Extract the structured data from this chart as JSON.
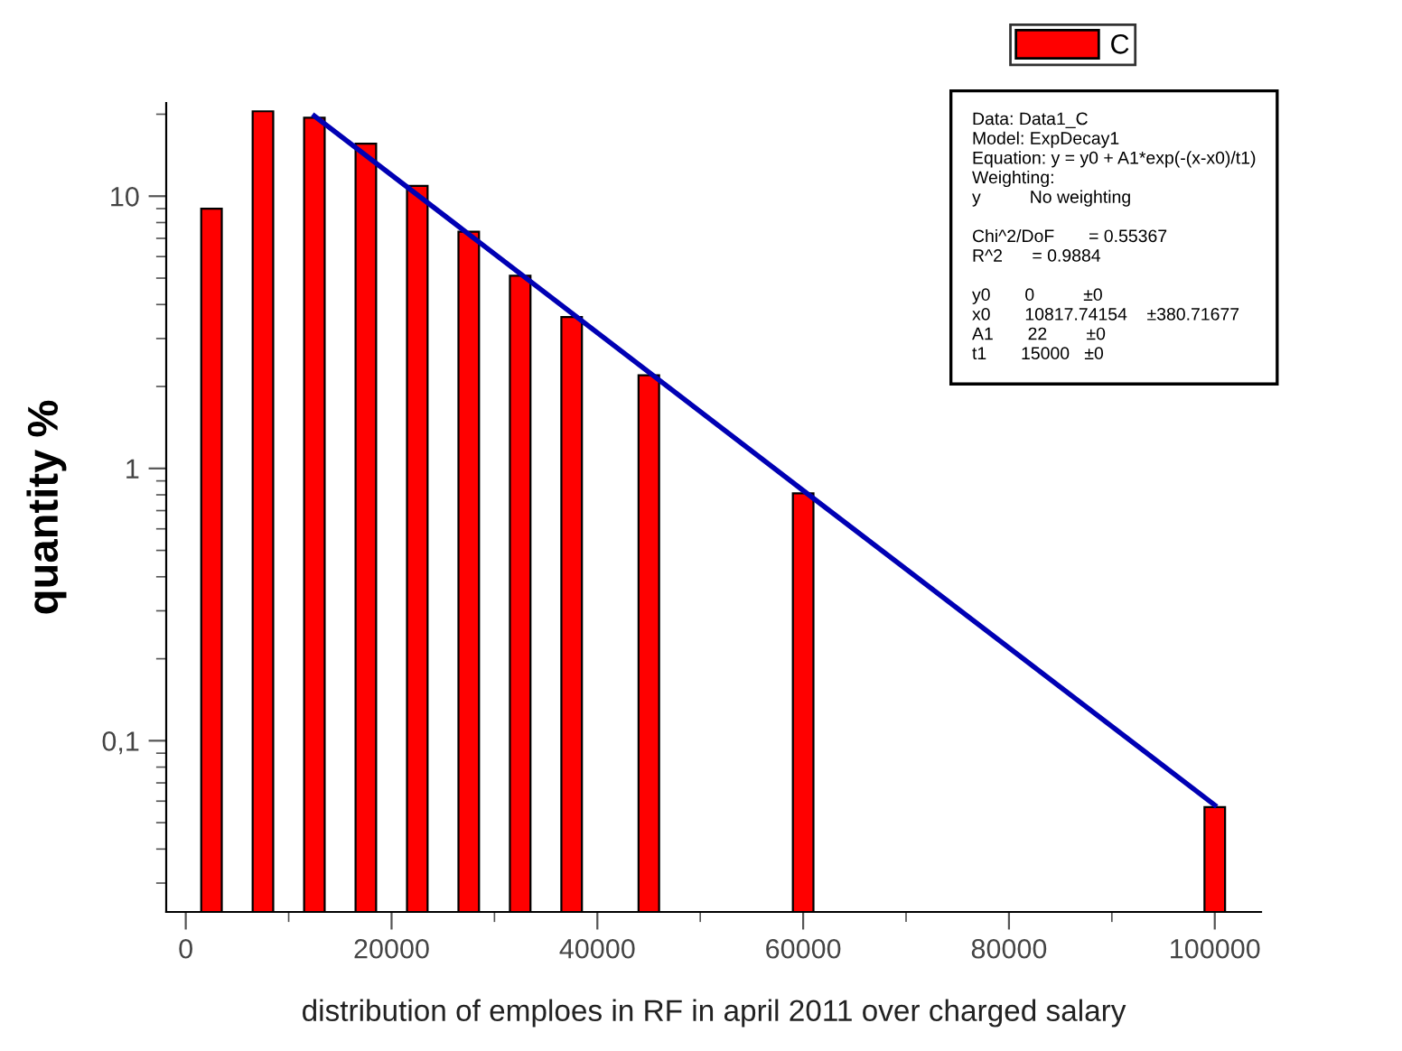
{
  "chart_data": {
    "type": "bar",
    "xlabel": "distribution of emploes in RF in april 2011 over charged salary",
    "ylabel": "quantity %",
    "x": [
      2500,
      7500,
      12500,
      17500,
      22500,
      27500,
      32500,
      37500,
      45000,
      60000,
      100000
    ],
    "series": [
      {
        "name": "C",
        "color": "#ff0000",
        "values": [
          9.0,
          20.5,
          19.4,
          15.6,
          10.9,
          7.4,
          5.1,
          3.6,
          2.2,
          0.81,
          0.057
        ]
      },
      {
        "type": "line",
        "color": "#0000b4",
        "x": [
          12500,
          60000,
          100000
        ],
        "values": [
          19.7,
          0.83,
          0.058
        ]
      }
    ],
    "log": "y",
    "xlim": [
      -1900,
      104500
    ],
    "ylim": [
      0.0235,
      22
    ],
    "xticks": [
      0,
      20000,
      40000,
      60000,
      80000,
      100000
    ],
    "yticks": [
      {
        "value": 0.1,
        "label": "0,1"
      },
      1,
      10
    ],
    "legend": "top right",
    "grid": false,
    "annotations": [
      "Data: Data1_C\nModel: ExpDecay1\nEquation: y = y0 + A1*exp(-(x-x0)/t1)\nWeighting:\ny          No weighting\n\nChi^2/DoF       = 0.55367\nR^2      = 0.9884\n\ny0       0          ±0\nx0       10817.74154    ±380.71677\nA1       22        ±0\nt1       15000   ±0"
    ]
  }
}
